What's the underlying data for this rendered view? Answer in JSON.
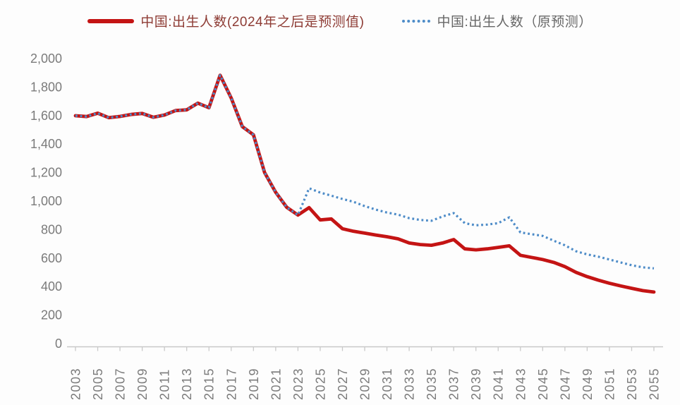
{
  "legend": [
    {
      "label": "中国:出生人数(2024年之后是预测值)",
      "line_color": "#c41414",
      "line_style": "solid",
      "text_color": "#8e3c35"
    },
    {
      "label": "中国:出生人数（原预测）",
      "line_color": "#4e8cc8",
      "line_style": "dotted",
      "text_color": "#676767"
    }
  ],
  "y_axis": {
    "tick_labels": [
      "0",
      "200",
      "400",
      "600",
      "800",
      "1,000",
      "1,200",
      "1,400",
      "1,600",
      "1,800",
      "2,000"
    ],
    "tick_values": [
      0,
      200,
      400,
      600,
      800,
      1000,
      1200,
      1400,
      1600,
      1800,
      2000
    ],
    "text_color": "#7b7b7b"
  },
  "x_axis": {
    "tick_labels": [
      "2003",
      "2005",
      "2007",
      "2009",
      "2011",
      "2013",
      "2015",
      "2017",
      "2019",
      "2021",
      "2023",
      "2025",
      "2027",
      "2029",
      "2031",
      "2033",
      "2035",
      "2037",
      "2039",
      "2041",
      "2043",
      "2045",
      "2047",
      "2049",
      "2051",
      "2053",
      "2055"
    ],
    "text_color": "#7b7b7b",
    "axis_color": "#c9c9c9"
  },
  "chart_data": {
    "type": "line",
    "title": "",
    "xlabel": "",
    "ylabel": "",
    "xlim": [
      2003,
      2055
    ],
    "ylim": [
      0,
      2000
    ],
    "y_tick_step": 200,
    "grid": false,
    "legend_position": "top",
    "x": [
      2003,
      2004,
      2005,
      2006,
      2007,
      2008,
      2009,
      2010,
      2011,
      2012,
      2013,
      2014,
      2015,
      2016,
      2017,
      2018,
      2019,
      2020,
      2021,
      2022,
      2023,
      2024,
      2025,
      2026,
      2027,
      2028,
      2029,
      2030,
      2031,
      2032,
      2033,
      2034,
      2035,
      2036,
      2037,
      2038,
      2039,
      2040,
      2041,
      2042,
      2043,
      2044,
      2045,
      2046,
      2047,
      2048,
      2049,
      2050,
      2051,
      2052,
      2053,
      2054,
      2055
    ],
    "series": [
      {
        "name": "中国:出生人数(2024年之后是预测值)",
        "color": "#c41414",
        "style": "solid",
        "forecast_from": 2024,
        "values": [
          1599,
          1593,
          1617,
          1585,
          1594,
          1608,
          1615,
          1588,
          1604,
          1635,
          1640,
          1687,
          1655,
          1883,
          1723,
          1523,
          1465,
          1200,
          1062,
          956,
          902,
          954,
          868,
          875,
          806,
          788,
          775,
          762,
          750,
          735,
          706,
          695,
          690,
          706,
          730,
          665,
          658,
          665,
          675,
          686,
          620,
          605,
          590,
          570,
          540,
          500,
          470,
          445,
          424,
          405,
          388,
          372,
          362
        ]
      },
      {
        "name": "中国:出生人数（原预测）",
        "color": "#4e8cc8",
        "style": "dotted",
        "forecast_from": 2024,
        "values": [
          1599,
          1593,
          1617,
          1585,
          1594,
          1608,
          1615,
          1588,
          1604,
          1635,
          1640,
          1687,
          1655,
          1883,
          1723,
          1523,
          1465,
          1200,
          1062,
          956,
          902,
          1090,
          1060,
          1038,
          1015,
          995,
          965,
          940,
          920,
          905,
          880,
          868,
          862,
          892,
          916,
          845,
          830,
          835,
          845,
          886,
          780,
          768,
          756,
          722,
          690,
          648,
          626,
          610,
          590,
          570,
          550,
          535,
          528
        ]
      }
    ]
  }
}
